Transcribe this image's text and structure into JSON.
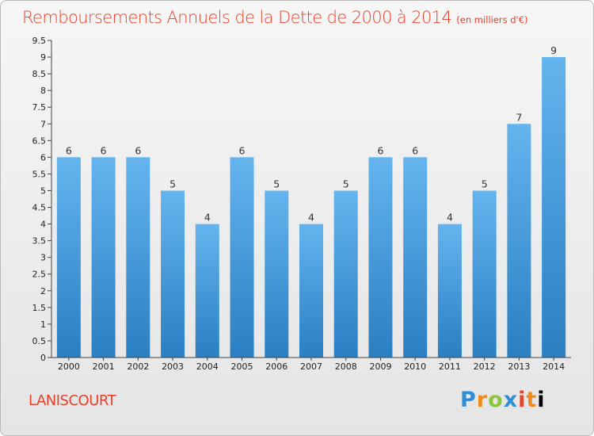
{
  "title": "Remboursements Annuels de la Dette de 2000 à 2014",
  "unit_note": "(en milliers d'€)",
  "commune": "LANISCOURT",
  "logo": "Proxiti",
  "colors": {
    "title": "#e8402a",
    "bar_top": "#64b4ee",
    "bar_bottom": "#2a7fc3",
    "axis": "#444444"
  },
  "chart_data": {
    "type": "bar",
    "title": "Remboursements Annuels de la Dette de 2000 à 2014",
    "xlabel": "",
    "ylabel": "",
    "categories": [
      "2000",
      "2001",
      "2002",
      "2003",
      "2004",
      "2005",
      "2006",
      "2007",
      "2008",
      "2009",
      "2010",
      "2011",
      "2012",
      "2013",
      "2014"
    ],
    "values": [
      6,
      6,
      6,
      5,
      4,
      6,
      5,
      4,
      5,
      6,
      6,
      4,
      5,
      7,
      9
    ],
    "data_labels": [
      "6",
      "6",
      "6",
      "5",
      "4",
      "6",
      "5",
      "4",
      "5",
      "6",
      "6",
      "4",
      "5",
      "7",
      "9"
    ],
    "yticks": [
      0,
      0.5,
      1,
      1.5,
      2,
      2.5,
      3,
      3.5,
      4,
      4.5,
      5,
      5.5,
      6,
      6.5,
      7,
      7.5,
      8,
      8.5,
      9,
      9.5
    ],
    "ytick_labels": [
      "0",
      "0.5",
      "1",
      "1.5",
      "2",
      "2.5",
      "3",
      "3.5",
      "4",
      "4.5",
      "5",
      "5.5",
      "6",
      "6.5",
      "7",
      "7.5",
      "8",
      "8.5",
      "9",
      "9.5"
    ],
    "ylim": [
      0,
      9.5
    ],
    "grid": false,
    "legend": "none"
  }
}
